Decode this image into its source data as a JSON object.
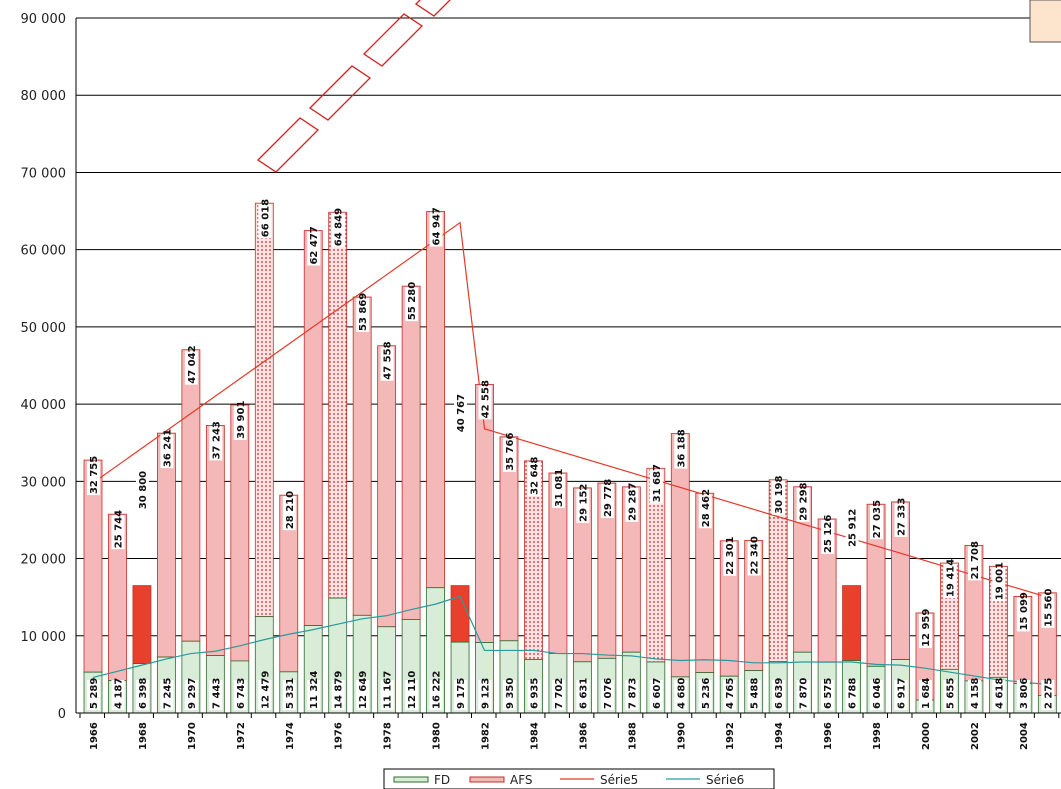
{
  "chart_data": {
    "type": "bar",
    "stacked": true,
    "y_ticks": [
      "0",
      "10 000",
      "20 000",
      "30 000",
      "40 000",
      "50 000",
      "60 000",
      "70 000",
      "80 000",
      "90 000"
    ],
    "ylim": [
      0,
      90000
    ],
    "grid": true,
    "legend_position": "bottom",
    "x_tick_labels": [
      "1966",
      "",
      "1968",
      "",
      "1970",
      "",
      "1972",
      "",
      "1974",
      "",
      "1976",
      "",
      "1978",
      "",
      "1980",
      "",
      "1982",
      "",
      "1984",
      "",
      "1986",
      "",
      "1988",
      "",
      "1990",
      "",
      "1992",
      "",
      "1994",
      "",
      "1996",
      "",
      "1998",
      "",
      "2000",
      "",
      "2002",
      "",
      "2004",
      ""
    ],
    "categories": [
      "1966",
      "1967",
      "1968",
      "1969",
      "1970",
      "1971",
      "1972",
      "1973",
      "1974",
      "1975",
      "1976",
      "1977",
      "1978",
      "1979",
      "1980",
      "1981",
      "1982",
      "1983",
      "1984",
      "1985",
      "1986",
      "1987",
      "1988",
      "1989",
      "1990",
      "1991",
      "1992",
      "1993",
      "1994",
      "1995",
      "1996",
      "1997",
      "1998",
      "1999",
      "2000",
      "2001",
      "2002",
      "2003",
      "2004",
      "2005"
    ],
    "fd_labels": [
      "5 289",
      "4 187",
      "6 398",
      "7 245",
      "9 297",
      "7 443",
      "6 743",
      "12 479",
      "5 331",
      "11 324",
      "14 879",
      "12 649",
      "11 167",
      "12 110",
      "16 222",
      "9 175",
      "9 123",
      "9 350",
      "6 935",
      "7 702",
      "6 631",
      "7 076",
      "7 873",
      "6 607",
      "4 680",
      "5 236",
      "4 765",
      "5 488",
      "6 639",
      "7 870",
      "6 575",
      "6 788",
      "6 046",
      "6 917",
      "1 684",
      "5 655",
      "4 158",
      "4 618",
      "3 806",
      "2 275"
    ],
    "afs_labels": [
      "32 755",
      "25 744",
      "30 800",
      "36 241",
      "47 042",
      "37 243",
      "39 901",
      "66 018",
      "28 210",
      "62 477",
      "64 849",
      "53 869",
      "47 558",
      "55 280",
      "64 947",
      "40 767",
      "42 558",
      "35 766",
      "32 648",
      "31 081",
      "29 152",
      "29 778",
      "29 287",
      "31 687",
      "36 188",
      "28 462",
      "22 301",
      "22 340",
      "30 198",
      "29 298",
      "25 126",
      "25 912",
      "27 035",
      "27 333",
      "12 959",
      "19 414",
      "21 708",
      "19 001",
      "15 099",
      "15 560"
    ],
    "series": [
      {
        "name": "FD",
        "color": "#d8ecd8",
        "edge": "#2e6b2e",
        "values": [
          5289,
          4187,
          6398,
          7245,
          9297,
          7443,
          6743,
          12479,
          5331,
          11324,
          14879,
          12649,
          11167,
          12110,
          16222,
          9175,
          9123,
          9350,
          6935,
          7702,
          6631,
          7076,
          7873,
          6607,
          4680,
          5236,
          4765,
          5488,
          6639,
          7870,
          6575,
          6788,
          6046,
          6917,
          1684,
          5655,
          4158,
          4618,
          3806,
          2275
        ]
      },
      {
        "name": "AFS",
        "color": "#f4b8b8",
        "edge": "#c0302a",
        "highlight": "#e8402c",
        "values": [
          32755,
          25744,
          30800,
          36241,
          47042,
          37243,
          39901,
          66018,
          28210,
          62477,
          64849,
          53869,
          47558,
          55280,
          64947,
          40767,
          42558,
          35766,
          32648,
          31081,
          29152,
          29778,
          29287,
          31687,
          36188,
          28462,
          22301,
          22340,
          30198,
          29298,
          25126,
          25912,
          27035,
          27333,
          12959,
          19414,
          21708,
          19001,
          15099,
          15560
        ]
      },
      {
        "name": "Série5",
        "type": "line",
        "color": "#e23a2a",
        "values": [
          29800,
          null,
          null,
          null,
          null,
          null,
          null,
          null,
          null,
          null,
          null,
          null,
          null,
          null,
          null,
          63500,
          36800,
          null,
          null,
          null,
          null,
          null,
          null,
          null,
          null,
          null,
          null,
          null,
          null,
          null,
          null,
          null,
          null,
          null,
          null,
          null,
          null,
          null,
          null,
          15000
        ]
      },
      {
        "name": "Série6",
        "type": "line",
        "color": "#2a9a9a",
        "values": [
          4600,
          5400,
          6200,
          7000,
          7700,
          8000,
          8700,
          9500,
          10200,
          10800,
          11500,
          12200,
          12600,
          13400,
          14100,
          15100,
          8100,
          8100,
          8100,
          7700,
          7700,
          7500,
          7400,
          7000,
          6800,
          6900,
          6800,
          6500,
          6500,
          6600,
          6600,
          6600,
          6300,
          6200,
          5800,
          5300,
          4800,
          4300,
          4000,
          3700
        ]
      }
    ],
    "dotted_years": [
      "1973",
      "1976",
      "1984",
      "1989",
      "1994",
      "2001",
      "2003"
    ],
    "solid_red_years": [
      "1968",
      "1981",
      "1997"
    ]
  }
}
